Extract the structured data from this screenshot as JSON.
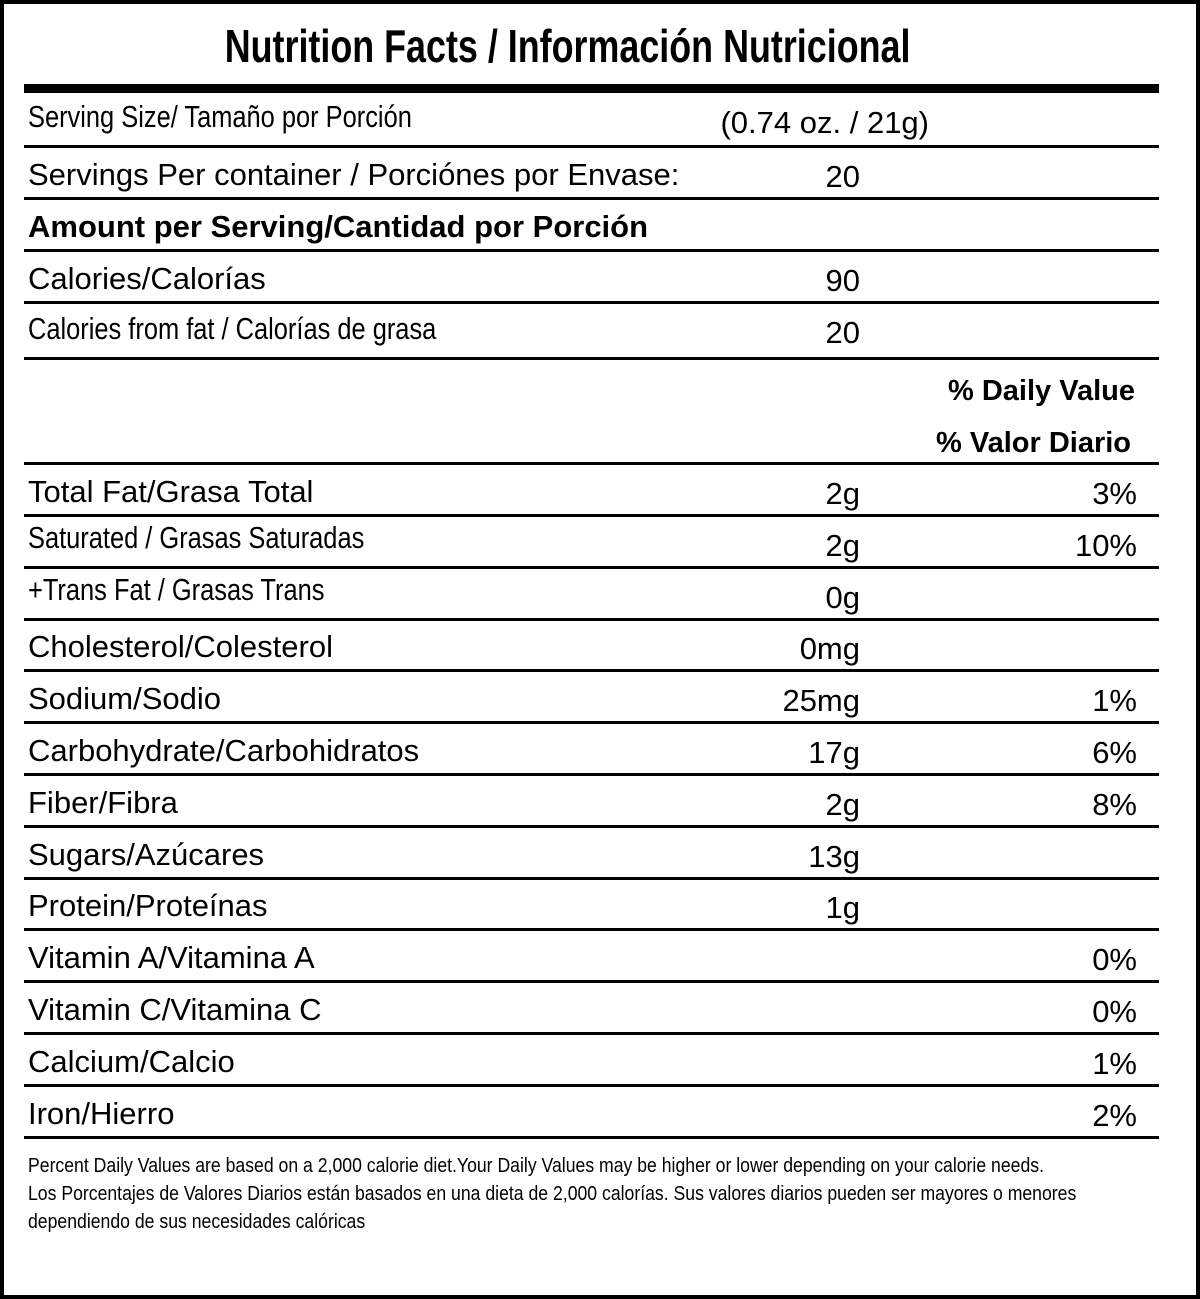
{
  "title": "Nutrition Facts / Información Nutricional",
  "serving_size": {
    "label": "Serving Size/ Tamaño por Porción",
    "value": "(0.74 oz. / 21g)"
  },
  "servings_per_container": {
    "label": "Servings Per container / Porciónes por Envase:",
    "value": "20"
  },
  "amount_per_serving": "Amount per Serving/Cantidad por Porción",
  "calories": {
    "label": "Calories/Calorías",
    "value": "90"
  },
  "calories_from_fat": {
    "label": "Calories from fat / Calorías de grasa",
    "value": "20"
  },
  "daily_value_header": {
    "line1": "% Daily Value",
    "line2": "% Valor Diario"
  },
  "nutrients": [
    {
      "label": "Total Fat/Grasa Total",
      "amount": "2g",
      "dv": "3%"
    },
    {
      "label": "Saturated / Grasas Saturadas",
      "amount": "2g",
      "dv": "10%"
    },
    {
      "label": "+Trans Fat / Grasas Trans",
      "amount": "0g",
      "dv": ""
    },
    {
      "label": "Cholesterol/Colesterol",
      "amount": "0mg",
      "dv": ""
    },
    {
      "label": "Sodium/Sodio",
      "amount": "25mg",
      "dv": "1%"
    },
    {
      "label": "Carbohydrate/Carbohidratos",
      "amount": "17g",
      "dv": "6%"
    },
    {
      "label": "Fiber/Fibra",
      "amount": "2g",
      "dv": "8%"
    },
    {
      "label": "Sugars/Azúcares",
      "amount": "13g",
      "dv": ""
    },
    {
      "label": "Protein/Proteínas",
      "amount": "1g",
      "dv": ""
    },
    {
      "label": "Vitamin A/Vitamina A",
      "amount": "",
      "dv": "0%"
    },
    {
      "label": "Vitamin C/Vitamina C",
      "amount": "",
      "dv": "0%"
    },
    {
      "label": "Calcium/Calcio",
      "amount": "",
      "dv": "1%"
    },
    {
      "label": "Iron/Hierro",
      "amount": "",
      "dv": "2%"
    }
  ],
  "footnote": {
    "english": "Percent Daily Values are based on a 2,000 calorie diet.Your Daily Values may be higher or lower depending on your calorie needs.",
    "spanish": "Los Porcentajes de Valores Diarios están basados en una dieta de 2,000 calorías. Sus valores diarios pueden ser mayores o menores dependiendo de sus necesidades calóricas"
  }
}
